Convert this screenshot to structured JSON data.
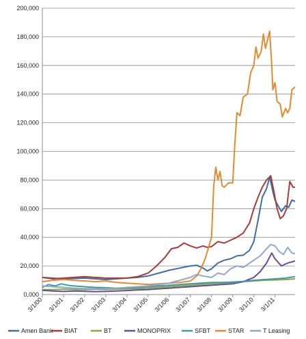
{
  "chart_data": {
    "type": "line",
    "title": "",
    "xlabel": "",
    "ylabel": "",
    "ylim": [
      0,
      200000
    ],
    "yticks": [
      0,
      20000,
      40000,
      60000,
      80000,
      100000,
      120000,
      140000,
      160000,
      180000,
      200000
    ],
    "ytick_labels": [
      "0,000",
      "20,000",
      "40,000",
      "60,000",
      "80,000",
      "100,000",
      "120,000",
      "140,000",
      "160,000",
      "180,000",
      "200,000"
    ],
    "xlim": [
      2000.0,
      2011.95
    ],
    "xticks": [
      2000.0,
      2001.0,
      2002.0,
      2003.0,
      2004.0,
      2005.0,
      2006.0,
      2007.0,
      2008.0,
      2009.0,
      2010.0,
      2011.0
    ],
    "xtick_labels": [
      "3/1/00",
      "3/1/01",
      "3/1/02",
      "3/1/03",
      "3/1/04",
      "3/1/05",
      "3/1/06",
      "3/1/07",
      "3/1/08",
      "3/1/09",
      "3/1/10",
      "3/1/11"
    ],
    "grid": "horizontal",
    "legend_position": "bottom",
    "series": [
      {
        "name": "Amen Bank",
        "color": "#3a6ea5",
        "points": [
          [
            2000.0,
            12000
          ],
          [
            2000.5,
            11500
          ],
          [
            2001.0,
            11000
          ],
          [
            2001.5,
            11200
          ],
          [
            2002.0,
            11500
          ],
          [
            2002.5,
            11000
          ],
          [
            2003.0,
            10500
          ],
          [
            2003.5,
            11000
          ],
          [
            2004.0,
            11500
          ],
          [
            2004.5,
            12000
          ],
          [
            2005.0,
            13000
          ],
          [
            2005.5,
            15000
          ],
          [
            2006.0,
            17000
          ],
          [
            2006.5,
            18500
          ],
          [
            2007.0,
            20000
          ],
          [
            2007.3,
            20500
          ],
          [
            2007.6,
            18500
          ],
          [
            2007.8,
            16500
          ],
          [
            2008.0,
            18000
          ],
          [
            2008.3,
            22000
          ],
          [
            2008.6,
            24000
          ],
          [
            2008.9,
            25000
          ],
          [
            2009.2,
            27000
          ],
          [
            2009.5,
            27500
          ],
          [
            2009.8,
            31000
          ],
          [
            2010.0,
            37000
          ],
          [
            2010.2,
            52000
          ],
          [
            2010.4,
            68000
          ],
          [
            2010.6,
            74000
          ],
          [
            2010.75,
            82000
          ],
          [
            2010.9,
            72000
          ],
          [
            2011.0,
            66000
          ],
          [
            2011.15,
            62000
          ],
          [
            2011.3,
            58000
          ],
          [
            2011.5,
            62000
          ],
          [
            2011.65,
            61000
          ],
          [
            2011.8,
            66000
          ],
          [
            2011.95,
            65000
          ]
        ]
      },
      {
        "name": "BIAT",
        "color": "#a83a3a",
        "points": [
          [
            2000.0,
            12000
          ],
          [
            2000.5,
            11000
          ],
          [
            2001.0,
            11500
          ],
          [
            2001.5,
            12000
          ],
          [
            2002.0,
            12500
          ],
          [
            2002.5,
            12000
          ],
          [
            2003.0,
            11500
          ],
          [
            2003.5,
            11500
          ],
          [
            2004.0,
            11500
          ],
          [
            2004.5,
            12500
          ],
          [
            2005.0,
            15000
          ],
          [
            2005.4,
            20000
          ],
          [
            2005.8,
            26000
          ],
          [
            2006.1,
            32000
          ],
          [
            2006.4,
            33000
          ],
          [
            2006.7,
            36000
          ],
          [
            2007.0,
            34000
          ],
          [
            2007.3,
            32500
          ],
          [
            2007.6,
            34000
          ],
          [
            2007.8,
            33000
          ],
          [
            2008.0,
            33500
          ],
          [
            2008.3,
            37000
          ],
          [
            2008.6,
            36000
          ],
          [
            2008.9,
            38000
          ],
          [
            2009.2,
            40000
          ],
          [
            2009.5,
            43000
          ],
          [
            2009.8,
            50000
          ],
          [
            2010.0,
            60000
          ],
          [
            2010.2,
            68000
          ],
          [
            2010.4,
            75000
          ],
          [
            2010.6,
            80000
          ],
          [
            2010.8,
            83000
          ],
          [
            2010.95,
            72000
          ],
          [
            2011.1,
            60000
          ],
          [
            2011.25,
            53000
          ],
          [
            2011.4,
            55000
          ],
          [
            2011.55,
            60000
          ],
          [
            2011.7,
            79000
          ],
          [
            2011.85,
            75000
          ],
          [
            2011.95,
            75000
          ]
        ]
      },
      {
        "name": "BT",
        "color": "#8aa93c",
        "points": [
          [
            2000.0,
            3500
          ],
          [
            2000.5,
            3500
          ],
          [
            2001.0,
            3800
          ],
          [
            2001.5,
            3600
          ],
          [
            2002.0,
            3500
          ],
          [
            2002.5,
            3700
          ],
          [
            2003.0,
            3600
          ],
          [
            2003.5,
            3800
          ],
          [
            2004.0,
            4000
          ],
          [
            2004.5,
            4200
          ],
          [
            2005.0,
            4500
          ],
          [
            2005.5,
            5000
          ],
          [
            2006.0,
            5500
          ],
          [
            2006.5,
            6000
          ],
          [
            2007.0,
            6500
          ],
          [
            2007.5,
            7000
          ],
          [
            2008.0,
            7500
          ],
          [
            2008.5,
            8000
          ],
          [
            2009.0,
            8500
          ],
          [
            2009.5,
            9000
          ],
          [
            2010.0,
            9500
          ],
          [
            2010.5,
            10000
          ],
          [
            2011.0,
            10200
          ],
          [
            2011.5,
            10500
          ],
          [
            2011.95,
            11000
          ]
        ]
      },
      {
        "name": "MONOPRIX",
        "color": "#6a4a9a",
        "points": [
          [
            2000.0,
            3000
          ],
          [
            2000.5,
            2500
          ],
          [
            2001.0,
            2200
          ],
          [
            2001.5,
            2500
          ],
          [
            2002.0,
            2300
          ],
          [
            2002.5,
            2000
          ],
          [
            2003.0,
            2200
          ],
          [
            2003.5,
            2500
          ],
          [
            2004.0,
            2800
          ],
          [
            2004.5,
            3200
          ],
          [
            2005.0,
            3500
          ],
          [
            2005.5,
            4000
          ],
          [
            2006.0,
            4500
          ],
          [
            2006.5,
            5000
          ],
          [
            2007.0,
            5500
          ],
          [
            2007.5,
            6000
          ],
          [
            2008.0,
            6500
          ],
          [
            2008.5,
            7000
          ],
          [
            2009.0,
            7500
          ],
          [
            2009.5,
            9000
          ],
          [
            2010.0,
            12000
          ],
          [
            2010.3,
            16000
          ],
          [
            2010.6,
            22000
          ],
          [
            2010.85,
            29000
          ],
          [
            2011.0,
            25000
          ],
          [
            2011.3,
            20000
          ],
          [
            2011.6,
            22000
          ],
          [
            2011.95,
            23500
          ]
        ]
      },
      {
        "name": "SFBT",
        "color": "#3a9ab0",
        "points": [
          [
            2000.0,
            5000
          ],
          [
            2000.3,
            7000
          ],
          [
            2000.6,
            6000
          ],
          [
            2000.9,
            7500
          ],
          [
            2001.2,
            6500
          ],
          [
            2001.5,
            6000
          ],
          [
            2002.0,
            5500
          ],
          [
            2002.5,
            5000
          ],
          [
            2003.0,
            4800
          ],
          [
            2003.5,
            4500
          ],
          [
            2004.0,
            4700
          ],
          [
            2004.5,
            5000
          ],
          [
            2005.0,
            5500
          ],
          [
            2005.5,
            6000
          ],
          [
            2006.0,
            6500
          ],
          [
            2006.5,
            7000
          ],
          [
            2007.0,
            7500
          ],
          [
            2007.5,
            8000
          ],
          [
            2008.0,
            8500
          ],
          [
            2008.5,
            8500
          ],
          [
            2009.0,
            8800
          ],
          [
            2009.5,
            9200
          ],
          [
            2010.0,
            10000
          ],
          [
            2010.5,
            10500
          ],
          [
            2011.0,
            11000
          ],
          [
            2011.5,
            11500
          ],
          [
            2011.95,
            12500
          ]
        ]
      },
      {
        "name": "STAR",
        "color": "#e28a2e",
        "points": [
          [
            2000.0,
            9000
          ],
          [
            2000.5,
            10000
          ],
          [
            2001.0,
            10500
          ],
          [
            2001.5,
            10000
          ],
          [
            2002.0,
            9500
          ],
          [
            2002.5,
            9000
          ],
          [
            2003.0,
            9500
          ],
          [
            2003.5,
            8500
          ],
          [
            2004.0,
            8000
          ],
          [
            2004.5,
            7500
          ],
          [
            2005.0,
            7000
          ],
          [
            2005.5,
            7500
          ],
          [
            2006.0,
            8000
          ],
          [
            2006.5,
            8500
          ],
          [
            2007.0,
            9500
          ],
          [
            2007.3,
            13000
          ],
          [
            2007.5,
            18000
          ],
          [
            2007.7,
            25000
          ],
          [
            2007.9,
            35000
          ],
          [
            2008.0,
            40000
          ],
          [
            2008.1,
            75000
          ],
          [
            2008.2,
            89000
          ],
          [
            2008.3,
            80000
          ],
          [
            2008.4,
            86000
          ],
          [
            2008.5,
            76000
          ],
          [
            2008.6,
            75000
          ],
          [
            2008.8,
            78000
          ],
          [
            2009.0,
            78000
          ],
          [
            2009.1,
            105000
          ],
          [
            2009.2,
            127000
          ],
          [
            2009.35,
            125000
          ],
          [
            2009.5,
            138000
          ],
          [
            2009.7,
            140000
          ],
          [
            2009.85,
            155000
          ],
          [
            2010.0,
            160000
          ],
          [
            2010.1,
            173000
          ],
          [
            2010.2,
            165000
          ],
          [
            2010.35,
            170000
          ],
          [
            2010.45,
            182000
          ],
          [
            2010.55,
            172000
          ],
          [
            2010.65,
            178000
          ],
          [
            2010.75,
            184000
          ],
          [
            2010.85,
            160000
          ],
          [
            2010.9,
            143000
          ],
          [
            2011.0,
            148000
          ],
          [
            2011.1,
            135000
          ],
          [
            2011.25,
            133000
          ],
          [
            2011.35,
            124000
          ],
          [
            2011.5,
            130000
          ],
          [
            2011.6,
            127000
          ],
          [
            2011.7,
            130000
          ],
          [
            2011.8,
            143000
          ],
          [
            2011.95,
            145000
          ]
        ]
      },
      {
        "name": "T Leasing",
        "color": "#8fa6d4",
        "points": [
          [
            2000.0,
            6000
          ],
          [
            2000.5,
            5500
          ],
          [
            2001.0,
            5000
          ],
          [
            2001.5,
            4500
          ],
          [
            2002.0,
            4200
          ],
          [
            2002.5,
            4000
          ],
          [
            2003.0,
            4200
          ],
          [
            2003.5,
            4500
          ],
          [
            2004.0,
            5000
          ],
          [
            2004.5,
            5500
          ],
          [
            2005.0,
            6000
          ],
          [
            2005.5,
            7000
          ],
          [
            2006.0,
            8000
          ],
          [
            2006.5,
            10000
          ],
          [
            2007.0,
            12000
          ],
          [
            2007.3,
            14000
          ],
          [
            2007.6,
            13000
          ],
          [
            2008.0,
            12000
          ],
          [
            2008.3,
            15000
          ],
          [
            2008.6,
            14000
          ],
          [
            2008.9,
            18000
          ],
          [
            2009.2,
            20000
          ],
          [
            2009.5,
            19000
          ],
          [
            2009.8,
            22000
          ],
          [
            2010.0,
            24000
          ],
          [
            2010.3,
            27000
          ],
          [
            2010.6,
            32000
          ],
          [
            2010.8,
            35000
          ],
          [
            2011.0,
            34000
          ],
          [
            2011.2,
            30000
          ],
          [
            2011.4,
            28000
          ],
          [
            2011.6,
            33000
          ],
          [
            2011.8,
            29000
          ],
          [
            2011.95,
            28500
          ]
        ]
      }
    ]
  }
}
